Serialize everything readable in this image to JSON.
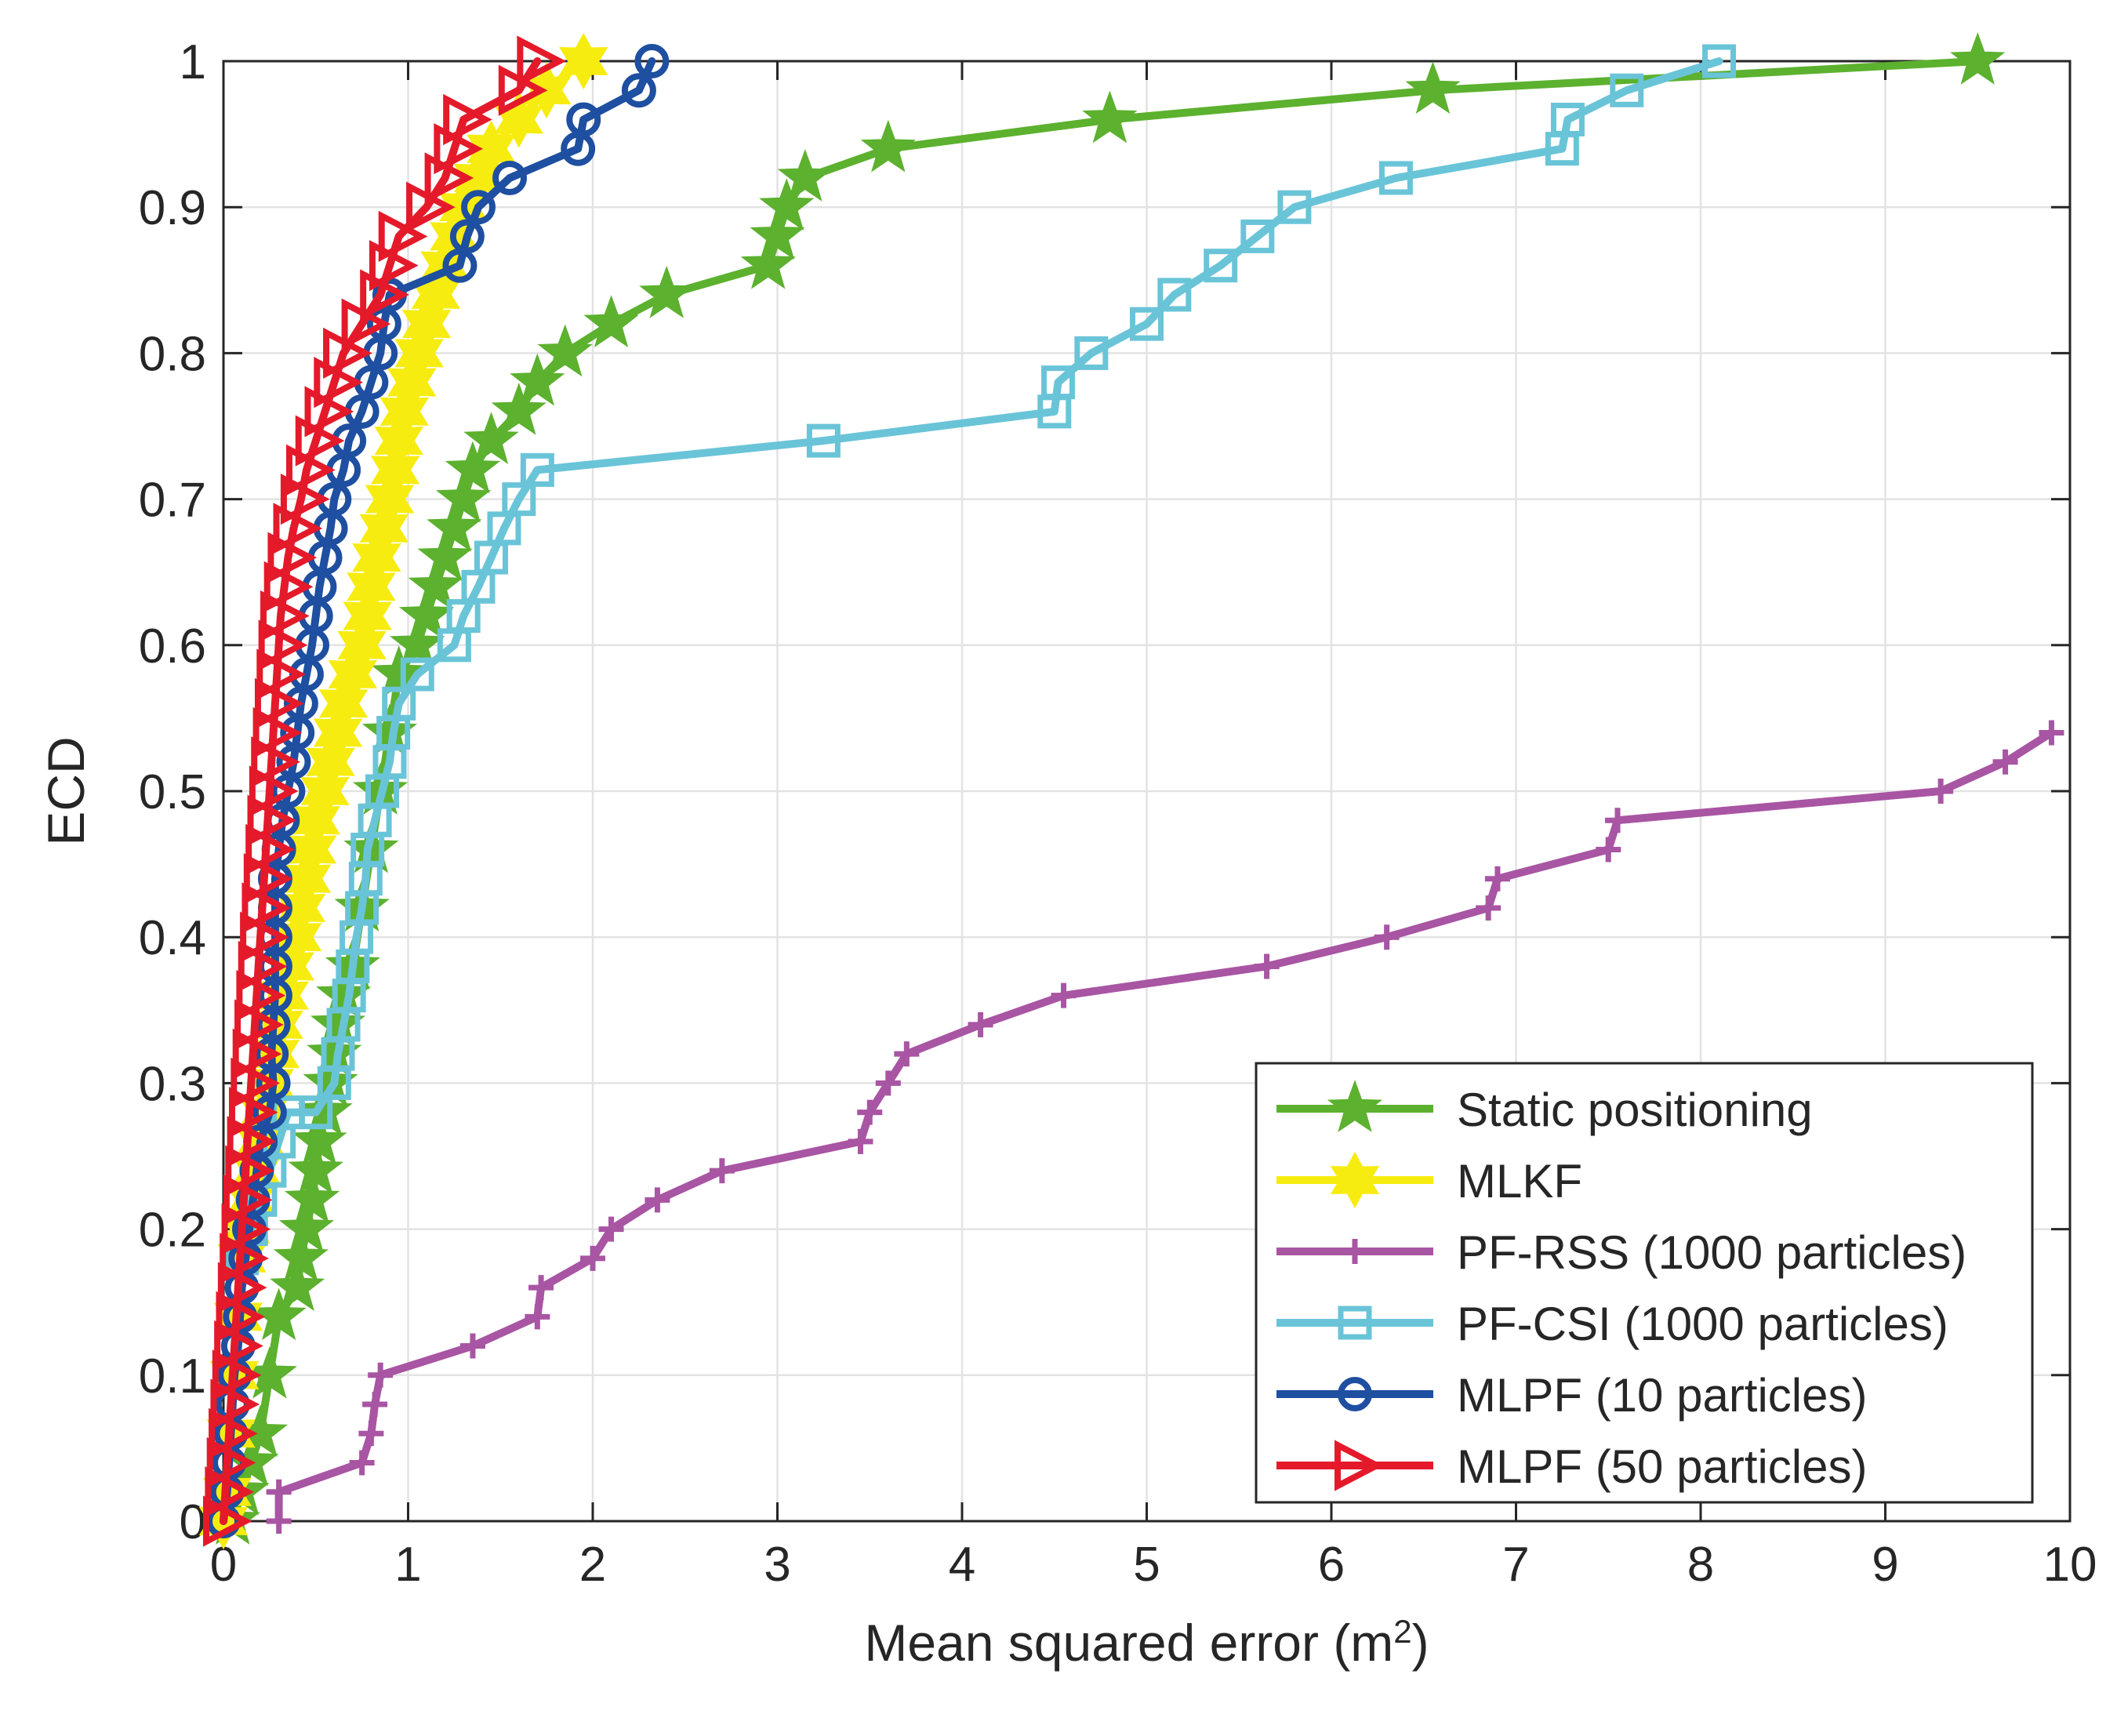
{
  "chart_data": {
    "type": "line",
    "title": "",
    "xlabel": "Mean squared error (m",
    "xlabel_sup": "2",
    "xlabel_suffix": ")",
    "ylabel": "ECD",
    "xlim": [
      0,
      10
    ],
    "ylim": [
      0,
      1
    ],
    "xticks": [
      0,
      1,
      2,
      3,
      4,
      5,
      6,
      7,
      8,
      9,
      10
    ],
    "xtick_labels": [
      "0",
      "1",
      "2",
      "3",
      "4",
      "5",
      "6",
      "7",
      "8",
      "9",
      "10"
    ],
    "yticks": [
      0,
      0.1,
      0.2,
      0.3,
      0.4,
      0.5,
      0.6,
      0.7,
      0.8,
      0.9,
      1
    ],
    "ytick_labels": [
      "0",
      "0.1",
      "0.2",
      "0.3",
      "0.4",
      "0.5",
      "0.6",
      "0.7",
      "0.8",
      "0.9",
      "1"
    ],
    "grid": true,
    "legend_position": "bottom-right",
    "series": [
      {
        "name": "Static positioning",
        "color": "#5cb12e",
        "marker": "star",
        "points": [
          [
            0.05,
            0
          ],
          [
            0.1,
            0.02
          ],
          [
            0.15,
            0.04
          ],
          [
            0.2,
            0.06
          ],
          [
            0.25,
            0.1
          ],
          [
            0.3,
            0.14
          ],
          [
            0.4,
            0.16
          ],
          [
            0.42,
            0.18
          ],
          [
            0.45,
            0.2
          ],
          [
            0.48,
            0.22
          ],
          [
            0.5,
            0.24
          ],
          [
            0.52,
            0.26
          ],
          [
            0.55,
            0.28
          ],
          [
            0.58,
            0.3
          ],
          [
            0.6,
            0.32
          ],
          [
            0.62,
            0.34
          ],
          [
            0.65,
            0.36
          ],
          [
            0.7,
            0.38
          ],
          [
            0.75,
            0.42
          ],
          [
            0.8,
            0.46
          ],
          [
            0.85,
            0.5
          ],
          [
            0.9,
            0.54
          ],
          [
            0.95,
            0.58
          ],
          [
            1.05,
            0.6
          ],
          [
            1.1,
            0.62
          ],
          [
            1.15,
            0.64
          ],
          [
            1.2,
            0.66
          ],
          [
            1.25,
            0.68
          ],
          [
            1.3,
            0.7
          ],
          [
            1.35,
            0.72
          ],
          [
            1.45,
            0.74
          ],
          [
            1.6,
            0.76
          ],
          [
            1.7,
            0.78
          ],
          [
            1.85,
            0.8
          ],
          [
            2.1,
            0.82
          ],
          [
            2.4,
            0.84
          ],
          [
            2.95,
            0.86
          ],
          [
            3.0,
            0.88
          ],
          [
            3.05,
            0.9
          ],
          [
            3.15,
            0.92
          ],
          [
            3.6,
            0.94
          ],
          [
            4.8,
            0.96
          ],
          [
            6.55,
            0.98
          ],
          [
            9.5,
            1.0
          ]
        ]
      },
      {
        "name": "MLKF",
        "color": "#f7ec0f",
        "marker": "hexagram",
        "points": [
          [
            0.0,
            0
          ],
          [
            0.02,
            0.02
          ],
          [
            0.04,
            0.06
          ],
          [
            0.06,
            0.1
          ],
          [
            0.08,
            0.14
          ],
          [
            0.1,
            0.18
          ],
          [
            0.12,
            0.2
          ],
          [
            0.15,
            0.22
          ],
          [
            0.18,
            0.24
          ],
          [
            0.2,
            0.26
          ],
          [
            0.22,
            0.28
          ],
          [
            0.25,
            0.3
          ],
          [
            0.28,
            0.32
          ],
          [
            0.3,
            0.34
          ],
          [
            0.33,
            0.36
          ],
          [
            0.36,
            0.38
          ],
          [
            0.4,
            0.4
          ],
          [
            0.42,
            0.42
          ],
          [
            0.45,
            0.44
          ],
          [
            0.48,
            0.46
          ],
          [
            0.5,
            0.48
          ],
          [
            0.55,
            0.5
          ],
          [
            0.58,
            0.52
          ],
          [
            0.62,
            0.54
          ],
          [
            0.65,
            0.56
          ],
          [
            0.7,
            0.58
          ],
          [
            0.75,
            0.6
          ],
          [
            0.78,
            0.62
          ],
          [
            0.8,
            0.64
          ],
          [
            0.83,
            0.66
          ],
          [
            0.87,
            0.68
          ],
          [
            0.9,
            0.7
          ],
          [
            0.93,
            0.72
          ],
          [
            0.95,
            0.74
          ],
          [
            0.98,
            0.76
          ],
          [
            1.02,
            0.78
          ],
          [
            1.06,
            0.8
          ],
          [
            1.1,
            0.82
          ],
          [
            1.15,
            0.84
          ],
          [
            1.2,
            0.86
          ],
          [
            1.25,
            0.88
          ],
          [
            1.3,
            0.9
          ],
          [
            1.38,
            0.92
          ],
          [
            1.45,
            0.94
          ],
          [
            1.6,
            0.96
          ],
          [
            1.75,
            0.98
          ],
          [
            1.95,
            1.0
          ]
        ]
      },
      {
        "name": "PF-RSS (1000 particles)",
        "color": "#a855a3",
        "marker": "plus",
        "points": [
          [
            0.3,
            0
          ],
          [
            0.3,
            0.02
          ],
          [
            0.75,
            0.04
          ],
          [
            0.8,
            0.06
          ],
          [
            0.82,
            0.08
          ],
          [
            0.85,
            0.1
          ],
          [
            1.35,
            0.12
          ],
          [
            1.7,
            0.14
          ],
          [
            1.72,
            0.16
          ],
          [
            2.0,
            0.18
          ],
          [
            2.1,
            0.2
          ],
          [
            2.35,
            0.22
          ],
          [
            2.7,
            0.24
          ],
          [
            3.45,
            0.26
          ],
          [
            3.5,
            0.28
          ],
          [
            3.6,
            0.3
          ],
          [
            3.7,
            0.32
          ],
          [
            4.1,
            0.34
          ],
          [
            4.55,
            0.36
          ],
          [
            5.65,
            0.38
          ],
          [
            6.3,
            0.4
          ],
          [
            6.85,
            0.42
          ],
          [
            6.9,
            0.44
          ],
          [
            7.5,
            0.46
          ],
          [
            7.55,
            0.48
          ],
          [
            9.3,
            0.5
          ],
          [
            9.65,
            0.52
          ],
          [
            9.9,
            0.54
          ]
        ]
      },
      {
        "name": "PF-CSI (1000 particles)",
        "color": "#6ac4d8",
        "marker": "square",
        "points": [
          [
            0.1,
            0.18
          ],
          [
            0.15,
            0.2
          ],
          [
            0.2,
            0.22
          ],
          [
            0.25,
            0.24
          ],
          [
            0.3,
            0.26
          ],
          [
            0.35,
            0.28
          ],
          [
            0.5,
            0.28
          ],
          [
            0.6,
            0.3
          ],
          [
            0.62,
            0.32
          ],
          [
            0.65,
            0.34
          ],
          [
            0.68,
            0.36
          ],
          [
            0.7,
            0.38
          ],
          [
            0.72,
            0.4
          ],
          [
            0.75,
            0.42
          ],
          [
            0.77,
            0.44
          ],
          [
            0.78,
            0.46
          ],
          [
            0.82,
            0.48
          ],
          [
            0.86,
            0.5
          ],
          [
            0.9,
            0.52
          ],
          [
            0.92,
            0.54
          ],
          [
            0.95,
            0.56
          ],
          [
            1.05,
            0.58
          ],
          [
            1.25,
            0.6
          ],
          [
            1.3,
            0.62
          ],
          [
            1.38,
            0.64
          ],
          [
            1.45,
            0.66
          ],
          [
            1.52,
            0.68
          ],
          [
            1.6,
            0.7
          ],
          [
            1.7,
            0.72
          ],
          [
            3.25,
            0.74
          ],
          [
            4.5,
            0.76
          ],
          [
            4.52,
            0.78
          ],
          [
            4.7,
            0.8
          ],
          [
            5.0,
            0.82
          ],
          [
            5.15,
            0.84
          ],
          [
            5.4,
            0.86
          ],
          [
            5.6,
            0.88
          ],
          [
            5.8,
            0.9
          ],
          [
            6.35,
            0.92
          ],
          [
            7.25,
            0.94
          ],
          [
            7.28,
            0.96
          ],
          [
            7.6,
            0.98
          ],
          [
            8.1,
            1.0
          ]
        ]
      },
      {
        "name": "MLPF (10 particles)",
        "color": "#1e4fa0",
        "marker": "circle",
        "points": [
          [
            0.0,
            0
          ],
          [
            0.02,
            0.02
          ],
          [
            0.03,
            0.04
          ],
          [
            0.04,
            0.06
          ],
          [
            0.05,
            0.08
          ],
          [
            0.06,
            0.1
          ],
          [
            0.08,
            0.12
          ],
          [
            0.09,
            0.14
          ],
          [
            0.1,
            0.16
          ],
          [
            0.12,
            0.18
          ],
          [
            0.14,
            0.2
          ],
          [
            0.16,
            0.22
          ],
          [
            0.18,
            0.24
          ],
          [
            0.2,
            0.26
          ],
          [
            0.25,
            0.28
          ],
          [
            0.27,
            0.3
          ],
          [
            0.26,
            0.32
          ],
          [
            0.27,
            0.34
          ],
          [
            0.28,
            0.36
          ],
          [
            0.28,
            0.38
          ],
          [
            0.28,
            0.4
          ],
          [
            0.28,
            0.42
          ],
          [
            0.28,
            0.44
          ],
          [
            0.3,
            0.46
          ],
          [
            0.32,
            0.48
          ],
          [
            0.35,
            0.5
          ],
          [
            0.38,
            0.52
          ],
          [
            0.4,
            0.54
          ],
          [
            0.42,
            0.56
          ],
          [
            0.45,
            0.58
          ],
          [
            0.48,
            0.6
          ],
          [
            0.5,
            0.62
          ],
          [
            0.52,
            0.64
          ],
          [
            0.55,
            0.66
          ],
          [
            0.58,
            0.68
          ],
          [
            0.6,
            0.7
          ],
          [
            0.65,
            0.72
          ],
          [
            0.68,
            0.74
          ],
          [
            0.75,
            0.76
          ],
          [
            0.8,
            0.78
          ],
          [
            0.85,
            0.8
          ],
          [
            0.87,
            0.82
          ],
          [
            0.9,
            0.84
          ],
          [
            1.28,
            0.86
          ],
          [
            1.32,
            0.88
          ],
          [
            1.38,
            0.9
          ],
          [
            1.55,
            0.92
          ],
          [
            1.92,
            0.94
          ],
          [
            1.95,
            0.96
          ],
          [
            2.25,
            0.98
          ],
          [
            2.32,
            1.0
          ]
        ]
      },
      {
        "name": "MLPF (50 particles)",
        "color": "#e41a2a",
        "marker": "triangle-right",
        "points": [
          [
            0.0,
            0
          ],
          [
            0.01,
            0.02
          ],
          [
            0.02,
            0.04
          ],
          [
            0.03,
            0.06
          ],
          [
            0.04,
            0.08
          ],
          [
            0.05,
            0.1
          ],
          [
            0.06,
            0.12
          ],
          [
            0.07,
            0.14
          ],
          [
            0.08,
            0.16
          ],
          [
            0.09,
            0.18
          ],
          [
            0.1,
            0.2
          ],
          [
            0.11,
            0.22
          ],
          [
            0.12,
            0.24
          ],
          [
            0.13,
            0.26
          ],
          [
            0.14,
            0.28
          ],
          [
            0.15,
            0.3
          ],
          [
            0.16,
            0.32
          ],
          [
            0.17,
            0.34
          ],
          [
            0.18,
            0.36
          ],
          [
            0.19,
            0.38
          ],
          [
            0.2,
            0.4
          ],
          [
            0.21,
            0.42
          ],
          [
            0.22,
            0.44
          ],
          [
            0.23,
            0.46
          ],
          [
            0.24,
            0.48
          ],
          [
            0.25,
            0.5
          ],
          [
            0.26,
            0.52
          ],
          [
            0.27,
            0.54
          ],
          [
            0.28,
            0.56
          ],
          [
            0.29,
            0.58
          ],
          [
            0.3,
            0.6
          ],
          [
            0.31,
            0.62
          ],
          [
            0.33,
            0.64
          ],
          [
            0.35,
            0.66
          ],
          [
            0.38,
            0.68
          ],
          [
            0.42,
            0.7
          ],
          [
            0.45,
            0.72
          ],
          [
            0.5,
            0.74
          ],
          [
            0.55,
            0.76
          ],
          [
            0.6,
            0.78
          ],
          [
            0.65,
            0.8
          ],
          [
            0.75,
            0.82
          ],
          [
            0.85,
            0.84
          ],
          [
            0.9,
            0.86
          ],
          [
            0.95,
            0.88
          ],
          [
            1.1,
            0.9
          ],
          [
            1.2,
            0.92
          ],
          [
            1.25,
            0.94
          ],
          [
            1.3,
            0.96
          ],
          [
            1.6,
            0.98
          ],
          [
            1.7,
            1.0
          ]
        ]
      }
    ]
  }
}
